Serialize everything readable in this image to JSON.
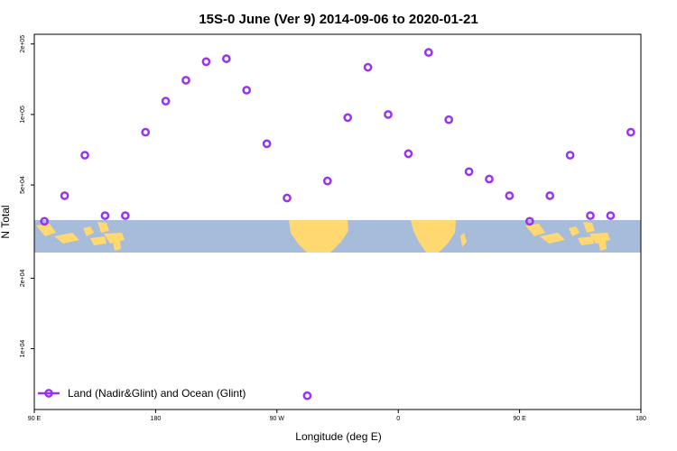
{
  "chart_data": {
    "type": "scatter",
    "title": "15S-0 June (Ver 9)   2014-09-06 to 2020-01-21",
    "xlabel": "Longitude (deg E)",
    "ylabel": "N Total",
    "x_scale": "linear",
    "y_scale": "log",
    "xlim": [
      90,
      540
    ],
    "ylim": [
      5500,
      220000
    ],
    "x_ticks": [
      {
        "value": 90,
        "label": "90 E"
      },
      {
        "value": 180,
        "label": "180"
      },
      {
        "value": 270,
        "label": "90 W"
      },
      {
        "value": 360,
        "label": "0"
      },
      {
        "value": 450,
        "label": "90 E"
      },
      {
        "value": 540,
        "label": "180"
      }
    ],
    "y_ticks": [
      {
        "value": 10000,
        "label": "1e+04"
      },
      {
        "value": 20000,
        "label": "2e+04"
      },
      {
        "value": 50000,
        "label": "5e+04"
      },
      {
        "value": 100000,
        "label": "1e+05"
      },
      {
        "value": 200000,
        "label": "2e+05"
      }
    ],
    "series": [
      {
        "name": "Land (Nadir&Glint) and Ocean (Glint)",
        "color": "#9933ee",
        "marker": "open-circle",
        "x": [
          97.5,
          112.5,
          127.5,
          142.5,
          157.5,
          172.5,
          187.5,
          202.5,
          217.5,
          232.5,
          247.5,
          262.5,
          277.5,
          292.5,
          307.5,
          322.5,
          337.5,
          352.5,
          367.5,
          382.5,
          397.5,
          412.5,
          427.5,
          442.5,
          457.5,
          472.5,
          487.5,
          502.5,
          517.5,
          532.5
        ],
        "y": [
          35000,
          45000,
          67000,
          37000,
          37000,
          84000,
          114000,
          140000,
          168000,
          173000,
          127000,
          75000,
          44000,
          6300,
          52000,
          97000,
          159000,
          100000,
          68000,
          184000,
          95000,
          57000,
          53000,
          45000,
          35000,
          45000,
          67000,
          37000,
          37000,
          84000
        ]
      }
    ],
    "map_band": {
      "ocean_color": "#a7bcdb",
      "land_color": "#ffd872"
    },
    "legend": {
      "placement": "bottom-left",
      "label": "Land (Nadir&Glint) and Ocean (Glint)"
    }
  }
}
